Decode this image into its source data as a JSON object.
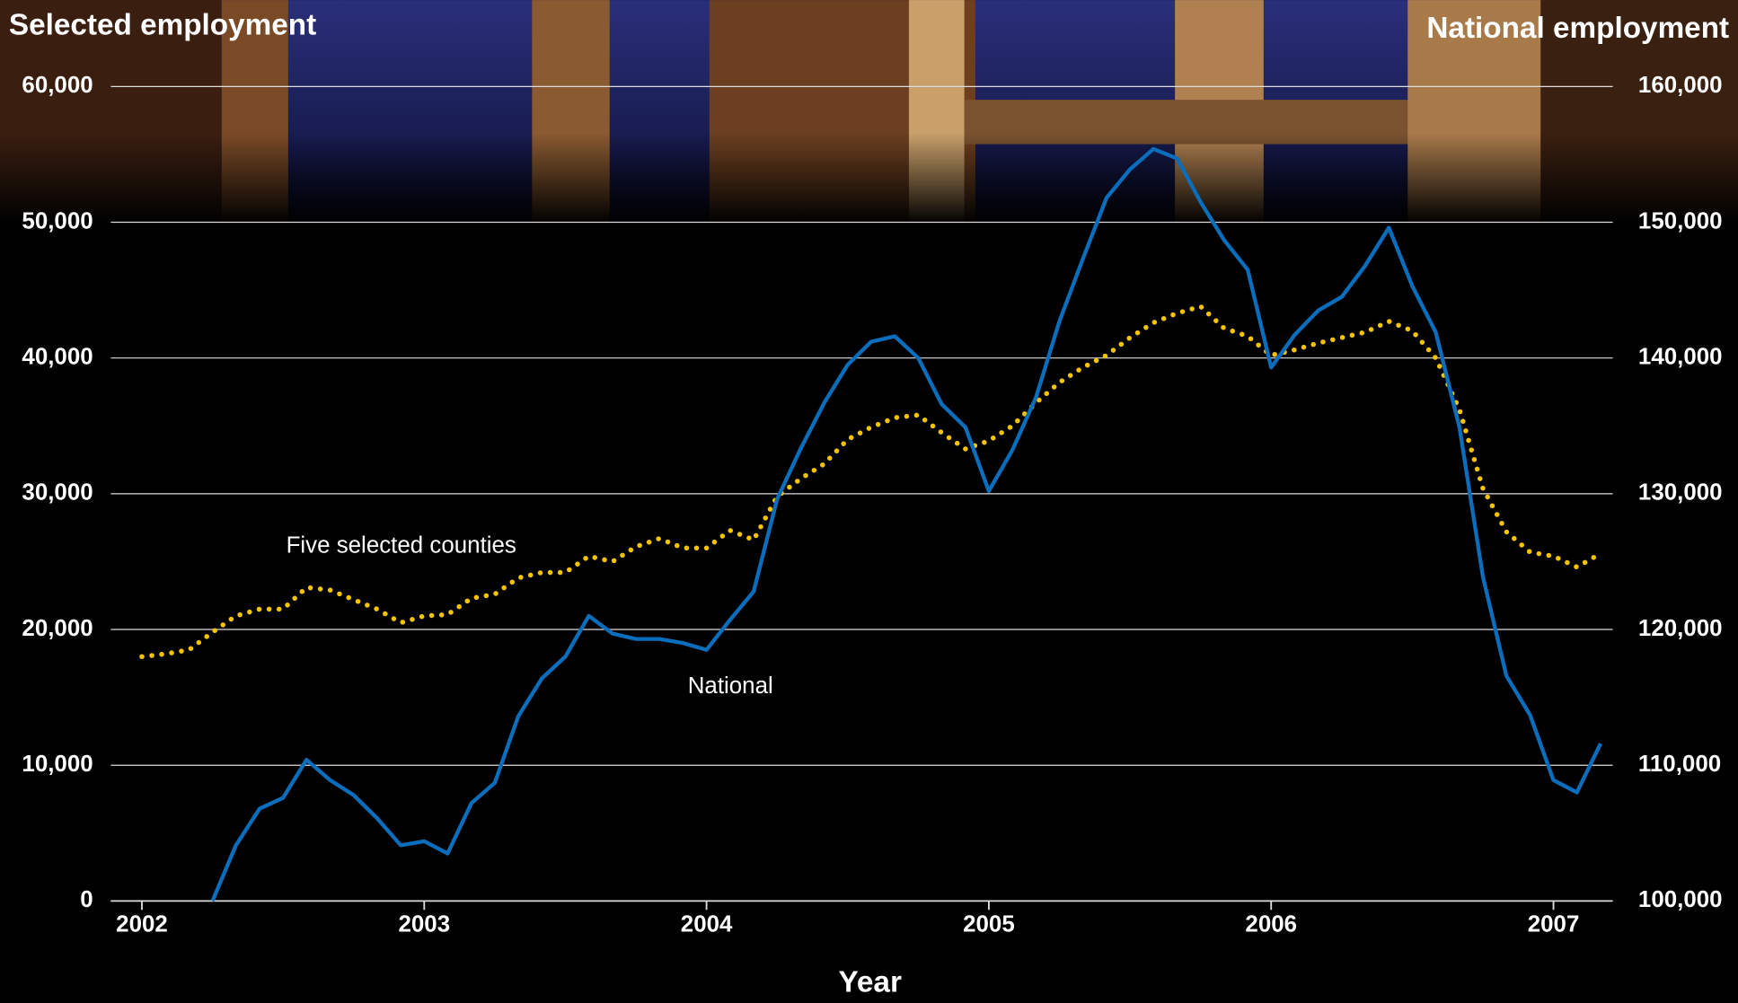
{
  "chart_data": {
    "type": "line",
    "y_label": "Selected employment",
    "y2_label": "National employment",
    "x_label": "Year",
    "x": [
      2002,
      2002.083,
      2002.167,
      2002.25,
      2002.333,
      2002.417,
      2002.5,
      2002.583,
      2002.667,
      2002.75,
      2002.833,
      2002.917,
      2003,
      2003.083,
      2003.167,
      2003.25,
      2003.333,
      2003.417,
      2003.5,
      2003.583,
      2003.667,
      2003.75,
      2003.833,
      2003.917,
      2004,
      2004.083,
      2004.167,
      2004.25,
      2004.333,
      2004.417,
      2004.5,
      2004.583,
      2004.667,
      2004.75,
      2004.833,
      2004.917,
      2005,
      2005.083,
      2005.167,
      2005.25,
      2005.333,
      2005.417,
      2005.5,
      2005.583,
      2005.667,
      2005.75,
      2005.833,
      2005.917,
      2006,
      2006.083,
      2006.167,
      2006.25,
      2006.333,
      2006.417,
      2006.5,
      2006.583,
      2006.667,
      2006.75,
      2006.833,
      2006.917,
      2007,
      2007.083,
      2007.167
    ],
    "series": [
      {
        "name": "Five selected counties",
        "color": "#f5c400",
        "style": "dotted",
        "axis": "y",
        "values": [
          18000,
          18200,
          18500,
          19800,
          21000,
          21500,
          21500,
          23100,
          22900,
          22200,
          21500,
          20500,
          21000,
          21100,
          22300,
          22600,
          23800,
          24200,
          24200,
          25400,
          25000,
          26100,
          26700,
          26000,
          26000,
          27300,
          26600,
          29800,
          31100,
          32200,
          34000,
          34900,
          35600,
          35800,
          34500,
          33300,
          33900,
          35000,
          36700,
          38200,
          39300,
          40200,
          41500,
          42600,
          43300,
          43800,
          42200,
          41600,
          40200,
          40600,
          41100,
          41500,
          41900,
          42700,
          42000,
          40000,
          36200,
          30400,
          27200,
          25700,
          25400,
          24600,
          25600
        ]
      },
      {
        "name": "National",
        "color": "#0a6ebd",
        "style": "solid",
        "axis": "y2",
        "values": [
          null,
          null,
          null,
          100000,
          104100,
          106800,
          107600,
          110400,
          108900,
          107800,
          106100,
          104100,
          104400,
          103500,
          107200,
          108700,
          113600,
          116400,
          118000,
          121000,
          119700,
          119300,
          119300,
          119000,
          118500,
          120700,
          122800,
          129600,
          133300,
          136700,
          139500,
          141200,
          141600,
          140000,
          136600,
          134900,
          130200,
          133200,
          137100,
          142700,
          147300,
          151800,
          153900,
          155400,
          154700,
          151500,
          148700,
          146500,
          139300,
          141700,
          143500,
          144500,
          146800,
          149600,
          145300,
          141900,
          134900,
          123900,
          116600,
          113700,
          108900,
          108000,
          111600
        ]
      }
    ],
    "xlim": [
      2001.89,
      2007.21
    ],
    "xticks": [
      2002,
      2003,
      2004,
      2005,
      2006,
      2007
    ],
    "ylim": [
      0,
      60000
    ],
    "yticks": [
      0,
      {
        "value": 10000,
        "label": "10,000"
      },
      {
        "value": 20000,
        "label": "20,000"
      },
      {
        "value": 30000,
        "label": "30,000"
      },
      {
        "value": 40000,
        "label": "40,000"
      },
      {
        "value": 50000,
        "label": "50,000"
      },
      {
        "value": 60000,
        "label": "60,000"
      }
    ],
    "y2lim": [
      100000,
      160000
    ],
    "y2ticks": [
      {
        "value": 100000,
        "label": "100,000"
      },
      {
        "value": 110000,
        "label": "110,000"
      },
      {
        "value": 120000,
        "label": "120,000"
      },
      {
        "value": 130000,
        "label": "130,000"
      },
      {
        "value": 140000,
        "label": "140,000"
      },
      {
        "value": 150000,
        "label": "150,000"
      },
      {
        "value": 160000,
        "label": "160,000"
      }
    ],
    "grid": true
  }
}
